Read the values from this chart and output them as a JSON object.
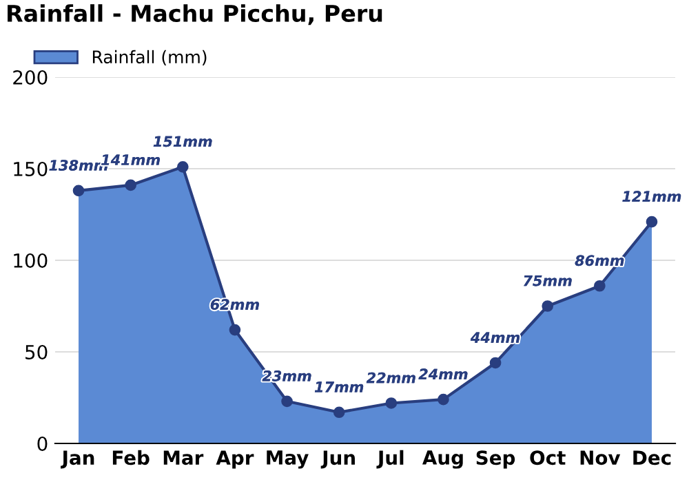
{
  "chart_data": {
    "type": "area",
    "title": "Rainfall - Machu Picchu, Peru",
    "categories": [
      "Jan",
      "Feb",
      "Mar",
      "Apr",
      "May",
      "Jun",
      "Jul",
      "Aug",
      "Sep",
      "Oct",
      "Nov",
      "Dec"
    ],
    "series": [
      {
        "name": "Rainfall (mm)",
        "color": "#5b8ad4",
        "values": [
          138,
          141,
          151,
          62,
          23,
          17,
          22,
          24,
          44,
          75,
          86,
          121
        ],
        "value_labels": [
          "138mm",
          "141mm",
          "151mm",
          "62mm",
          "23mm",
          "17mm",
          "22mm",
          "24mm",
          "44mm",
          "75mm",
          "86mm",
          "121mm"
        ]
      }
    ],
    "ylim": [
      0,
      200
    ],
    "yticks": [
      0,
      50,
      100,
      150,
      200
    ],
    "grid": "y",
    "legend": "top left",
    "marker": "circle"
  }
}
